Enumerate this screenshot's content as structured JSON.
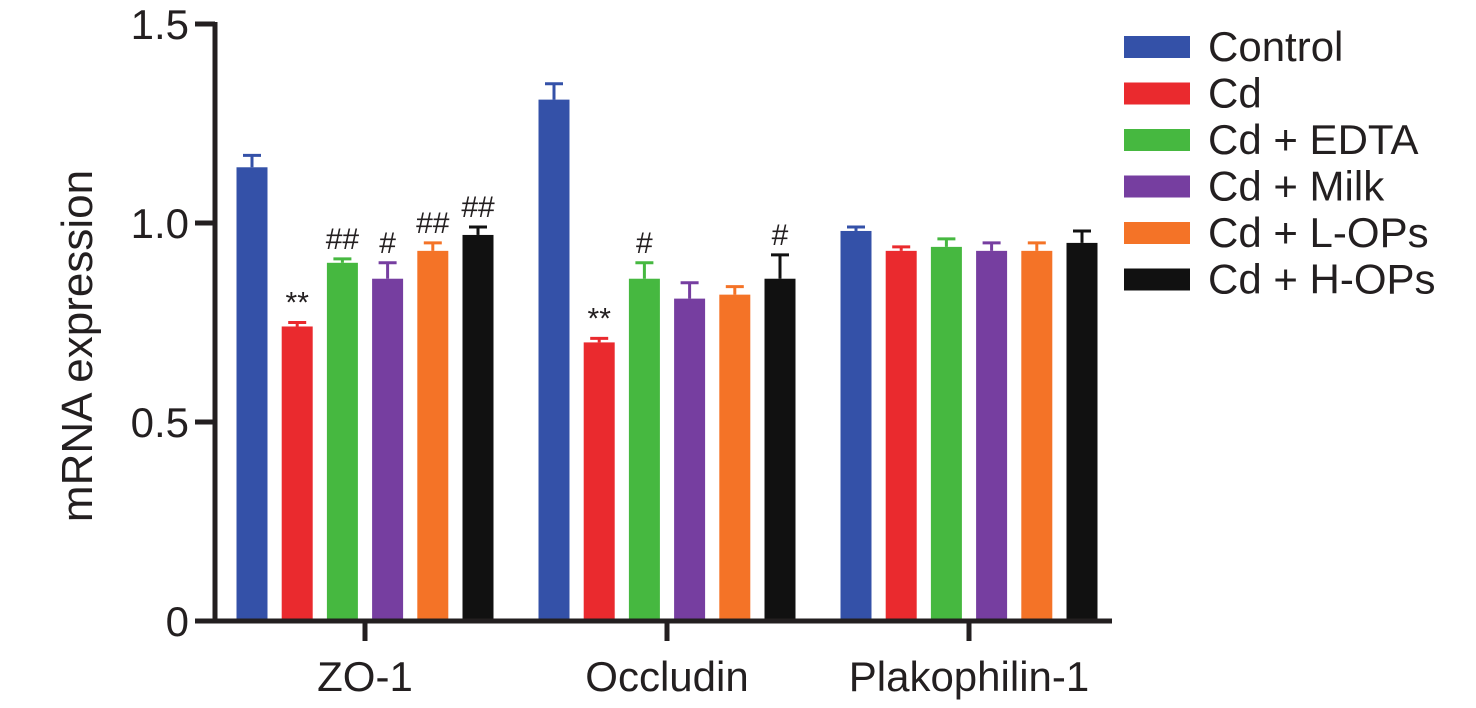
{
  "chart_data": {
    "type": "bar",
    "ylabel": "mRNA expression",
    "ylim": [
      0,
      1.5
    ],
    "yticks": [
      0,
      0.5,
      1.0,
      1.5
    ],
    "ytick_labels": [
      "0",
      "0.5",
      "1.0",
      "1.5"
    ],
    "categories": [
      "ZO-1",
      "Occludin",
      "Plakophilin-1"
    ],
    "legend_position": "right",
    "series": [
      {
        "name": "Control",
        "color": "#3451a8",
        "values": [
          1.14,
          1.31,
          0.98
        ],
        "errors": [
          0.03,
          0.04,
          0.01
        ],
        "annotations": [
          "",
          "",
          ""
        ]
      },
      {
        "name": "Cd",
        "color": "#ea2a2e",
        "values": [
          0.74,
          0.7,
          0.93
        ],
        "errors": [
          0.01,
          0.01,
          0.01
        ],
        "annotations": [
          "**",
          "**",
          ""
        ]
      },
      {
        "name": "Cd + EDTA",
        "color": "#46b840",
        "values": [
          0.9,
          0.86,
          0.94
        ],
        "errors": [
          0.01,
          0.04,
          0.02
        ],
        "annotations": [
          "##",
          "#",
          ""
        ]
      },
      {
        "name": "Cd + Milk",
        "color": "#763ea0",
        "values": [
          0.86,
          0.81,
          0.93
        ],
        "errors": [
          0.04,
          0.04,
          0.02
        ],
        "annotations": [
          "#",
          "",
          ""
        ]
      },
      {
        "name": "Cd + L-OPs",
        "color": "#f47327",
        "values": [
          0.93,
          0.82,
          0.93
        ],
        "errors": [
          0.02,
          0.02,
          0.02
        ],
        "annotations": [
          "##",
          "",
          ""
        ]
      },
      {
        "name": "Cd + H-OPs",
        "color": "#111111",
        "values": [
          0.97,
          0.86,
          0.95
        ],
        "errors": [
          0.02,
          0.06,
          0.03
        ],
        "annotations": [
          "##",
          "#",
          ""
        ]
      }
    ]
  }
}
